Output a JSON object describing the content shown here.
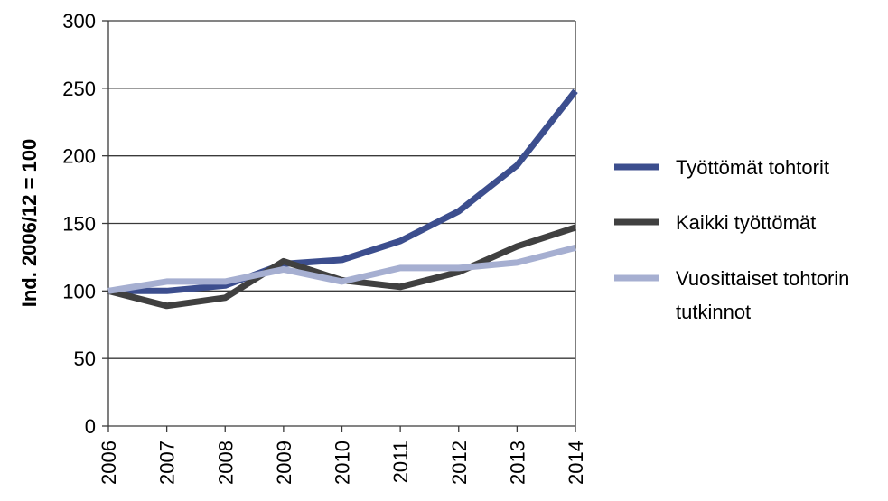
{
  "chart_data": {
    "type": "line",
    "x": [
      2006,
      2007,
      2008,
      2009,
      2010,
      2011,
      2012,
      2013,
      2014
    ],
    "x_tick_labels": [
      "2006",
      "2007",
      "2008",
      "2009",
      "2010",
      "2011",
      "2012",
      "2013",
      "2014"
    ],
    "y_tick_labels": [
      "0",
      "50",
      "100",
      "150",
      "200",
      "250",
      "300"
    ],
    "ylim": [
      0,
      300
    ],
    "ylabel": "Ind. 2006/12  = 100",
    "xlabel": "",
    "title": "",
    "grid": "horizontal",
    "legend_position": "right",
    "series": [
      {
        "name": "Työttömät tohtorit",
        "color": "#3c4e8e",
        "values": [
          100,
          100,
          104,
          120,
          123,
          137,
          159,
          193,
          248
        ]
      },
      {
        "name": "Kaikki työttömät",
        "color": "#404040",
        "values": [
          100,
          89,
          95,
          122,
          108,
          103,
          114,
          133,
          147
        ]
      },
      {
        "name": "Vuosittaiset tohtorin tutkinnot",
        "legend_lines": [
          "Vuosittaiset tohtorin",
          "tutkinnot"
        ],
        "color": "#a6afd1",
        "values": [
          100,
          107,
          107,
          116,
          107,
          117,
          117,
          121,
          132
        ]
      }
    ]
  }
}
